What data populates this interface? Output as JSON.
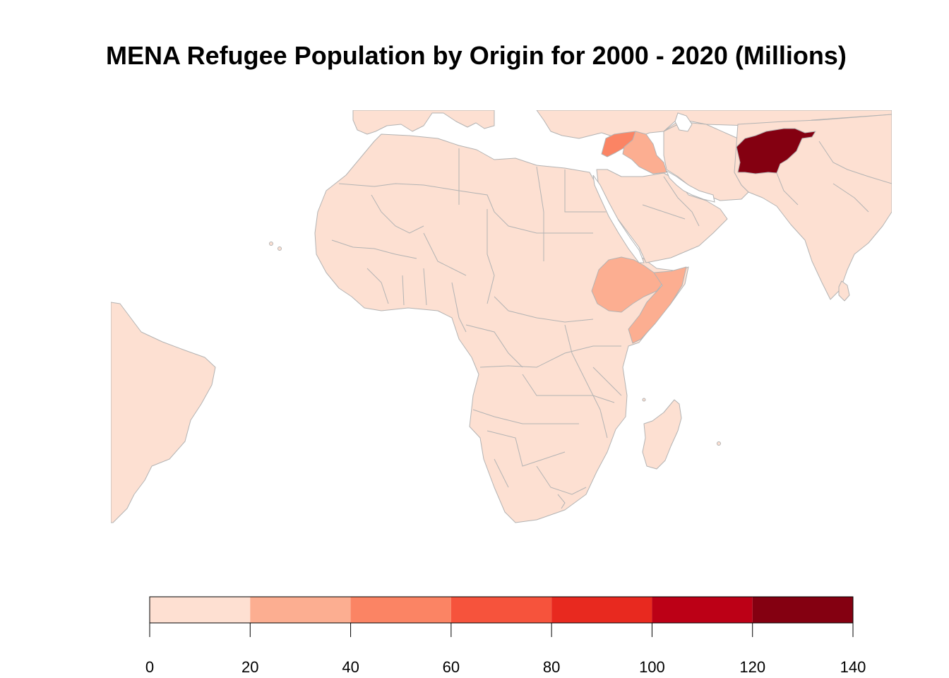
{
  "title": "MENA Refugee Population by Origin for 2000 - 2020 (Millions)",
  "colors": {
    "land": "#fde0d2",
    "border": "#b3b3b3"
  },
  "legend": {
    "bins": [
      {
        "from": 0,
        "to": 20,
        "color": "#fee0d2"
      },
      {
        "from": 20,
        "to": 40,
        "color": "#fcae91"
      },
      {
        "from": 40,
        "to": 60,
        "color": "#fb8464"
      },
      {
        "from": 60,
        "to": 80,
        "color": "#f6533c"
      },
      {
        "from": 80,
        "to": 100,
        "color": "#e8291f"
      },
      {
        "from": 100,
        "to": 120,
        "color": "#bc0016"
      },
      {
        "from": 120,
        "to": 140,
        "color": "#840011"
      }
    ],
    "ticks": [
      "0",
      "20",
      "40",
      "60",
      "80",
      "100",
      "120",
      "140"
    ]
  },
  "regions": [
    {
      "name": "Afghanistan",
      "bin": "120-140",
      "color": "#840011"
    },
    {
      "name": "Syria",
      "bin": "40-60",
      "color": "#fb8464"
    },
    {
      "name": "Iraq",
      "bin": "20-40",
      "color": "#fcae91"
    },
    {
      "name": "Ethiopia",
      "bin": "20-40",
      "color": "#fcae91"
    },
    {
      "name": "Somalia",
      "bin": "20-40",
      "color": "#fcae91"
    },
    {
      "name": "Other countries",
      "bin": "0-20",
      "color": "#fde0d2"
    }
  ]
}
